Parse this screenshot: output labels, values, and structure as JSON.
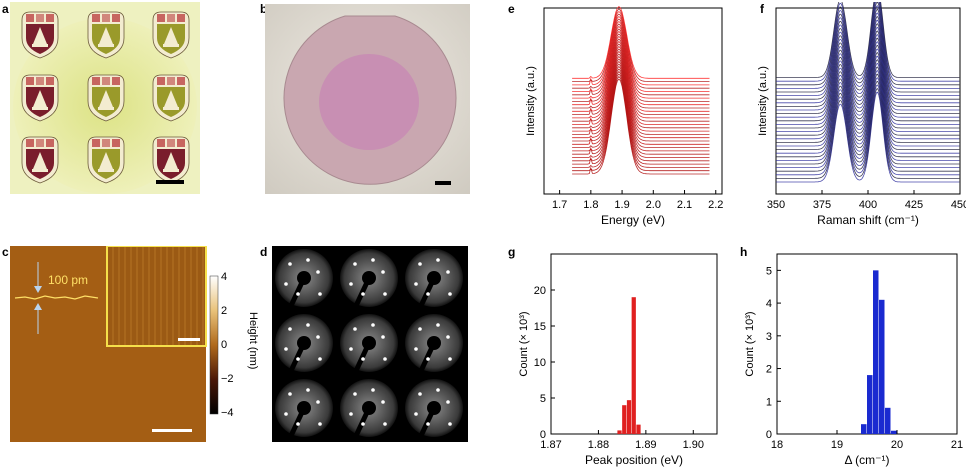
{
  "panel_labels": [
    "a",
    "b",
    "c",
    "d",
    "e",
    "f",
    "g",
    "h"
  ],
  "panel_c": {
    "step_label": "100 pm",
    "colorbar_label": "Height (nm)",
    "colorbar_ticks": [
      "4",
      "2",
      "0",
      "−2",
      "−4"
    ]
  },
  "chart_data": [
    {
      "panel": "e",
      "type": "line",
      "xlabel": "Energy (eV)",
      "ylabel": "Intensity (a.u.)",
      "xlim": [
        1.65,
        2.22
      ],
      "xticks": [
        "1.7",
        "1.8",
        "1.9",
        "2.0",
        "2.1",
        "2.2"
      ],
      "n_spectra": 30,
      "peak_energy": 1.89,
      "color": "#cc2222"
    },
    {
      "panel": "f",
      "type": "line",
      "xlabel": "Raman shift (cm⁻¹)",
      "ylabel": "Intensity (a.u.)",
      "xlim": [
        350,
        450
      ],
      "xticks": [
        "350",
        "375",
        "400",
        "425",
        "450"
      ],
      "n_spectra": 30,
      "peaks": [
        385,
        405
      ],
      "color": "#2b2b9e"
    },
    {
      "panel": "g",
      "type": "bar",
      "xlabel": "Peak position (eV)",
      "ylabel": "Count (× 10³)",
      "xlim": [
        1.87,
        1.905
      ],
      "ylim": [
        0,
        25
      ],
      "xticks": [
        "1.87",
        "1.88",
        "1.89",
        "1.90"
      ],
      "yticks": [
        "0",
        "5",
        "10",
        "15",
        "20"
      ],
      "x": [
        1.8845,
        1.8855,
        1.8865,
        1.8875,
        1.8885
      ],
      "values": [
        0.5,
        4.0,
        4.7,
        19.0,
        1.3
      ],
      "color": "#e02020"
    },
    {
      "panel": "h",
      "type": "bar",
      "xlabel": "Δ (cm⁻¹)",
      "ylabel": "Count (× 10³)",
      "xlim": [
        18,
        21
      ],
      "ylim": [
        0,
        5.5
      ],
      "xticks": [
        "18",
        "19",
        "20",
        "21"
      ],
      "yticks": [
        "0",
        "1",
        "2",
        "3",
        "4",
        "5"
      ],
      "x": [
        19.45,
        19.55,
        19.65,
        19.75,
        19.85,
        19.95
      ],
      "values": [
        0.3,
        1.8,
        5.0,
        4.1,
        0.8,
        0.1
      ],
      "color": "#1a2ad0"
    }
  ]
}
